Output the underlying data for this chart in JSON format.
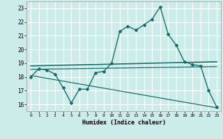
{
  "title": "",
  "xlabel": "Humidex (Indice chaleur)",
  "bg_color": "#ccecea",
  "grid_color": "#ffffff",
  "line_color": "#1a6b6b",
  "xlim": [
    -0.5,
    23.5
  ],
  "ylim": [
    15.5,
    23.5
  ],
  "yticks": [
    16,
    17,
    18,
    19,
    20,
    21,
    22,
    23
  ],
  "xticks": [
    0,
    1,
    2,
    3,
    4,
    5,
    6,
    7,
    8,
    9,
    10,
    11,
    12,
    13,
    14,
    15,
    16,
    17,
    18,
    19,
    20,
    21,
    22,
    23
  ],
  "series1_x": [
    0,
    1,
    2,
    3,
    4,
    5,
    6,
    7,
    8,
    9,
    10,
    11,
    12,
    13,
    14,
    15,
    16,
    17,
    18,
    19,
    20,
    21,
    22,
    23
  ],
  "series1_y": [
    18.0,
    18.6,
    18.5,
    18.2,
    17.2,
    16.1,
    17.1,
    17.1,
    18.3,
    18.4,
    19.0,
    21.3,
    21.7,
    21.4,
    21.8,
    22.2,
    23.1,
    21.1,
    20.3,
    19.1,
    18.9,
    18.8,
    17.0,
    15.8
  ],
  "series2_x": [
    0,
    23
  ],
  "series2_y": [
    18.8,
    19.1
  ],
  "series3_x": [
    0,
    23
  ],
  "series3_y": [
    18.55,
    18.75
  ],
  "series4_x": [
    0,
    23
  ],
  "series4_y": [
    18.1,
    15.75
  ]
}
